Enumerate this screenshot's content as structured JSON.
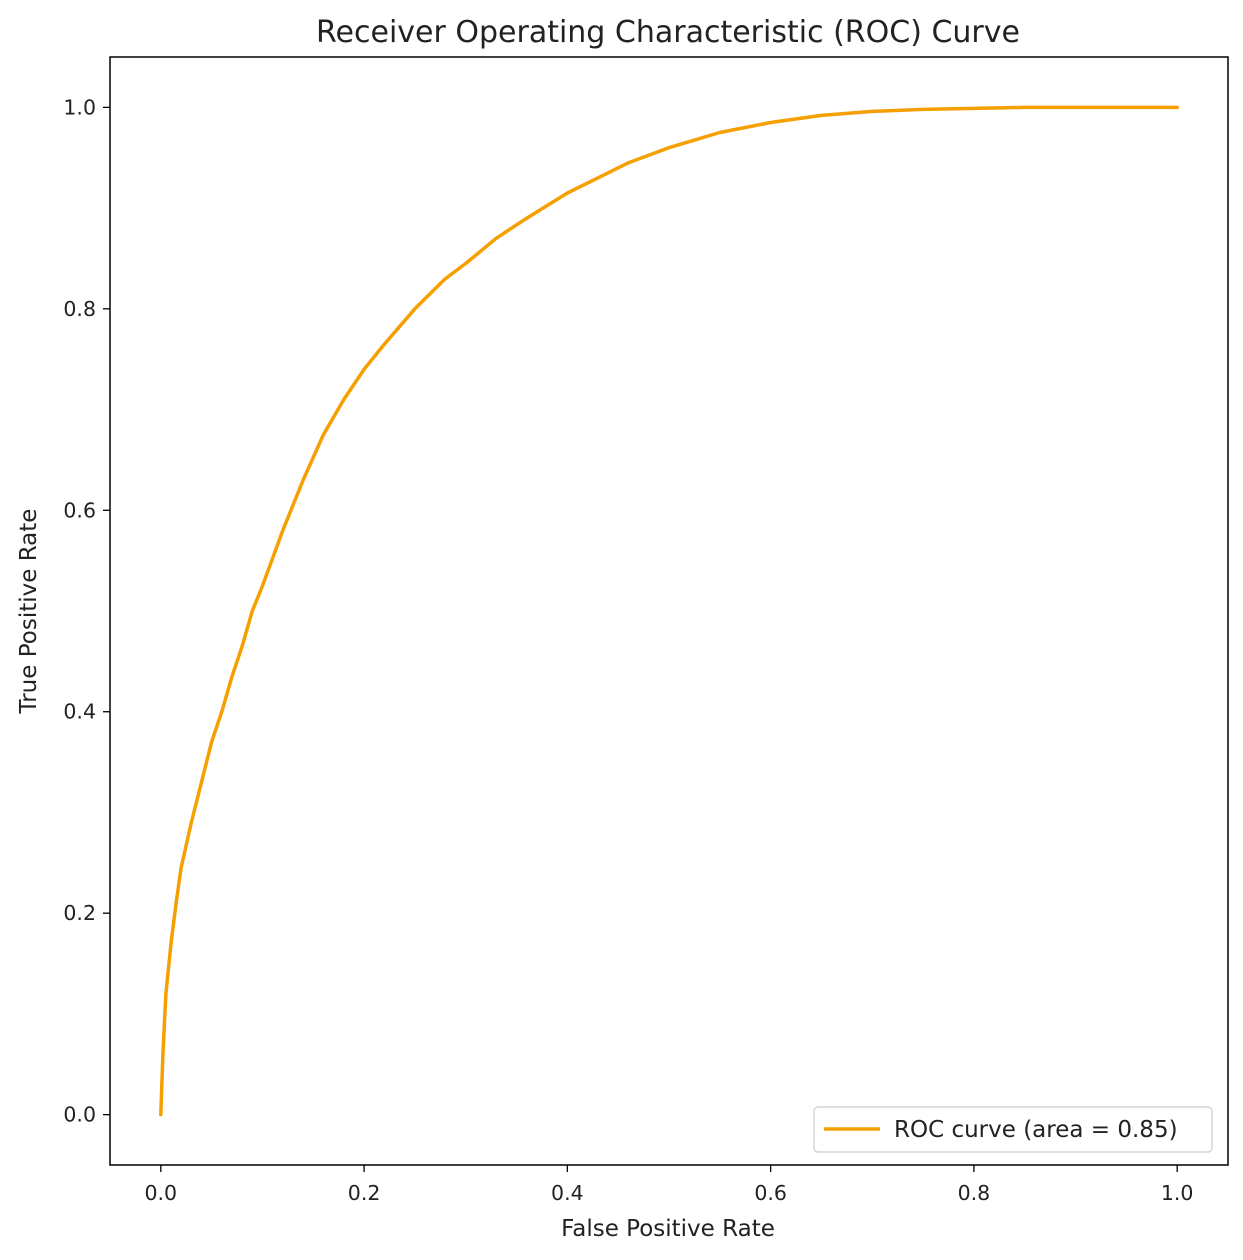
{
  "chart_data": {
    "type": "line",
    "title": "Receiver Operating Characteristic (ROC) Curve",
    "xlabel": "False Positive Rate",
    "ylabel": "True Positive Rate",
    "xlim": [
      -0.05,
      1.05
    ],
    "ylim": [
      -0.05,
      1.05
    ],
    "x_ticks": [
      "0.0",
      "0.2",
      "0.4",
      "0.6",
      "0.8",
      "1.0"
    ],
    "y_ticks": [
      "0.0",
      "0.2",
      "0.4",
      "0.6",
      "0.8",
      "1.0"
    ],
    "grid": false,
    "legend_position": "lower-right",
    "series": [
      {
        "name": "ROC curve (area = 0.85)",
        "color": "#f5a000",
        "x": [
          0.0,
          0.002,
          0.005,
          0.01,
          0.015,
          0.02,
          0.03,
          0.04,
          0.05,
          0.06,
          0.07,
          0.08,
          0.09,
          0.1,
          0.12,
          0.14,
          0.16,
          0.18,
          0.2,
          0.22,
          0.25,
          0.28,
          0.3,
          0.33,
          0.36,
          0.4,
          0.43,
          0.46,
          0.5,
          0.55,
          0.6,
          0.65,
          0.7,
          0.75,
          0.8,
          0.85,
          0.9,
          0.95,
          1.0
        ],
        "y": [
          0.0,
          0.06,
          0.12,
          0.17,
          0.21,
          0.245,
          0.29,
          0.33,
          0.37,
          0.4,
          0.435,
          0.465,
          0.5,
          0.525,
          0.58,
          0.63,
          0.675,
          0.71,
          0.74,
          0.765,
          0.8,
          0.83,
          0.845,
          0.87,
          0.89,
          0.915,
          0.93,
          0.945,
          0.96,
          0.975,
          0.985,
          0.992,
          0.996,
          0.998,
          0.999,
          1.0,
          1.0,
          1.0,
          1.0
        ]
      }
    ]
  }
}
